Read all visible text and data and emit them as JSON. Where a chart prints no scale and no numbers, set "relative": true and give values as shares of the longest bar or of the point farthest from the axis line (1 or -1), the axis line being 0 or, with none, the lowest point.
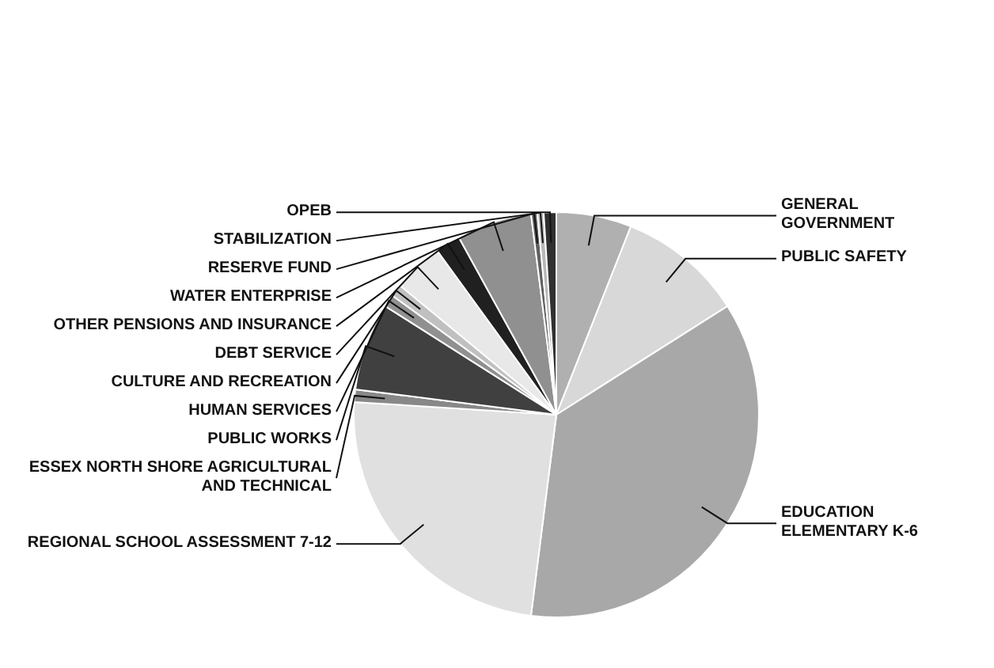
{
  "chart_data": {
    "type": "pie",
    "relative": true,
    "legend": false,
    "categories": [
      "GENERAL GOVERNMENT",
      "PUBLIC SAFETY",
      "EDUCATION ELEMENTARY K-6",
      "REGIONAL SCHOOL ASSESSMENT 7-12",
      "ESSEX NORTH SHORE AGRICULTURAL AND TECHNICAL",
      "PUBLIC WORKS",
      "HUMAN SERVICES",
      "CULTURE AND RECREATION",
      "DEBT SERVICE",
      "OTHER PENSIONS AND INSURANCE",
      "WATER ENTERPRISE",
      "RESERVE FUND",
      "STABILIZATION",
      "OPEB"
    ],
    "values": [
      6,
      10,
      36,
      24,
      1,
      7,
      1,
      1,
      4,
      2,
      6,
      0.5,
      0.5,
      1
    ],
    "colors": [
      "#b0b0b0",
      "#d8d8d8",
      "#a8a8a8",
      "#e0e0e0",
      "#888888",
      "#404040",
      "#909090",
      "#c0c0c0",
      "#e8e8e8",
      "#202020",
      "#909090",
      "#606060",
      "#b8b8b8",
      "#303030"
    ]
  }
}
